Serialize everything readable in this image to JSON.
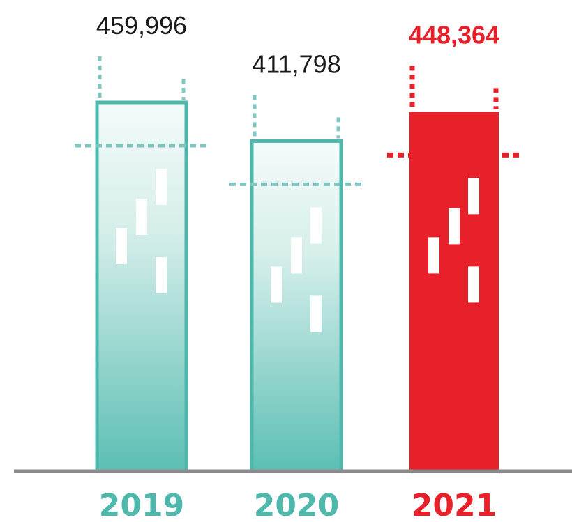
{
  "chart_data": {
    "type": "bar",
    "categories": [
      "2019",
      "2020",
      "2021"
    ],
    "values": [
      459996,
      411798,
      448364
    ],
    "value_labels": [
      "459,996",
      "411,798",
      "448,364"
    ],
    "highlight_index": 2,
    "ylim": [
      0,
      500000
    ],
    "grid": false,
    "legend": "none"
  },
  "colors": {
    "teal": "#4fb8ad",
    "teal_light": "#eaf6f4",
    "teal_dash": "#7ec6bf",
    "red": "#e8202a",
    "text_dark": "#1a1a1a",
    "baseline": "#8a8a8a"
  },
  "icons": [
    "candlestick-icon",
    "candlestick-icon",
    "candlestick-icon"
  ]
}
